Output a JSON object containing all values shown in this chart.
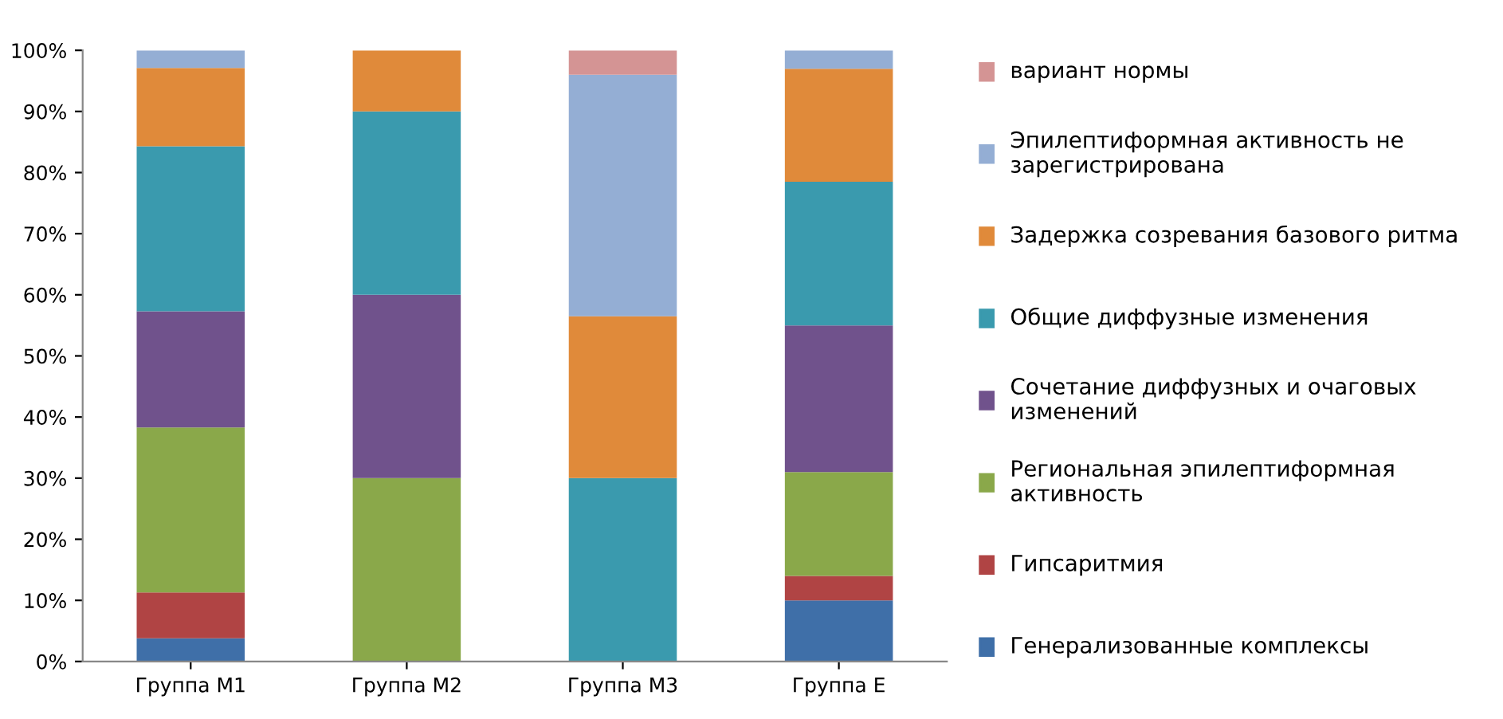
{
  "chart_data": {
    "type": "bar",
    "stacked": true,
    "categories": [
      "Группа М1",
      "Группа М2",
      "Группа М3",
      "Группа Е"
    ],
    "series": [
      {
        "name": "Генерализованные комплексы",
        "color": "#3f6fa8",
        "values": [
          3.8,
          0,
          0,
          10
        ]
      },
      {
        "name": "Гипсаритмия",
        "color": "#b04444",
        "values": [
          7.5,
          0,
          0,
          4
        ]
      },
      {
        "name": "Региональная эпилептиформная активность",
        "color": "#8aa84a",
        "values": [
          27,
          30,
          0,
          17
        ]
      },
      {
        "name": "Сочетание диффузных и очаговых изменений",
        "color": "#70528c",
        "values": [
          19,
          30,
          0,
          24
        ]
      },
      {
        "name": "Общие диффузные изменения",
        "color": "#3a9aae",
        "values": [
          27,
          30,
          30,
          23.5
        ]
      },
      {
        "name": "Задержка созревания базового ритма",
        "color": "#e08a3a",
        "values": [
          12.8,
          10,
          26.5,
          18.5
        ]
      },
      {
        "name": "Эпилептиформная активность не зарегистрирована",
        "color": "#94aed4",
        "values": [
          2.9,
          0,
          39.5,
          3
        ]
      },
      {
        "name": "вариант нормы",
        "color": "#d49494",
        "values": [
          0,
          0,
          4,
          0
        ]
      }
    ],
    "ylim": [
      0,
      100
    ],
    "yticks": [
      {
        "value": 0,
        "label": "0%"
      },
      {
        "value": 10,
        "label": "10%"
      },
      {
        "value": 20,
        "label": "20%"
      },
      {
        "value": 30,
        "label": "30%"
      },
      {
        "value": 40,
        "label": "40%"
      },
      {
        "value": 50,
        "label": "50%"
      },
      {
        "value": 60,
        "label": "60%"
      },
      {
        "value": 70,
        "label": "70%"
      },
      {
        "value": 80,
        "label": "80%"
      },
      {
        "value": 90,
        "label": "90%"
      },
      {
        "value": 100,
        "label": "100%"
      }
    ],
    "legend": "right"
  }
}
